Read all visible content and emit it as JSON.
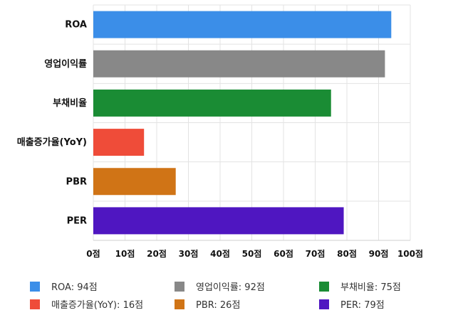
{
  "chart_data": {
    "type": "bar",
    "orientation": "horizontal",
    "categories": [
      "ROA",
      "영업이익률",
      "부채비율",
      "매출증가율(YoY)",
      "PBR",
      "PER"
    ],
    "values": [
      94,
      92,
      75,
      16,
      26,
      79
    ],
    "colors": [
      "#3b8ee8",
      "#888888",
      "#1a8c34",
      "#ef4c39",
      "#d07416",
      "#4f16c1"
    ],
    "xlim": [
      0,
      100
    ],
    "x_ticks": [
      "0점",
      "10점",
      "20점",
      "30점",
      "40점",
      "50점",
      "60점",
      "70점",
      "80점",
      "90점",
      "100점"
    ],
    "grid": true,
    "legend_position": "bottom",
    "legend": [
      "ROA: 94점",
      "영업이익률: 92점",
      "부채비율: 75점",
      "매출증가율(YoY): 16점",
      "PBR: 26점",
      "PER: 79점"
    ]
  }
}
